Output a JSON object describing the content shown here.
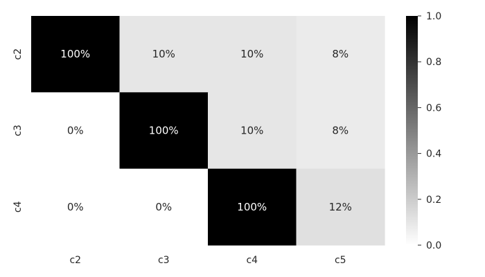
{
  "chart_data": {
    "type": "heatmap",
    "rows": [
      "c2",
      "c3",
      "c4"
    ],
    "columns": [
      "c2",
      "c3",
      "c4",
      "c5"
    ],
    "values": [
      [
        1.0,
        0.1,
        0.1,
        0.08
      ],
      [
        0.0,
        1.0,
        0.1,
        0.08
      ],
      [
        0.0,
        0.0,
        1.0,
        0.12
      ]
    ],
    "cell_labels": [
      [
        "100%",
        "10%",
        "10%",
        "8%"
      ],
      [
        "0%",
        "100%",
        "10%",
        "8%"
      ],
      [
        "0%",
        "0%",
        "100%",
        "12%"
      ]
    ],
    "colormap": {
      "low": "#ffffff",
      "high": "#000000"
    },
    "colorbar": {
      "range": [
        0.0,
        1.0
      ],
      "ticks": [
        "0.0",
        "0.2",
        "0.4",
        "0.6",
        "0.8",
        "1.0"
      ]
    }
  }
}
